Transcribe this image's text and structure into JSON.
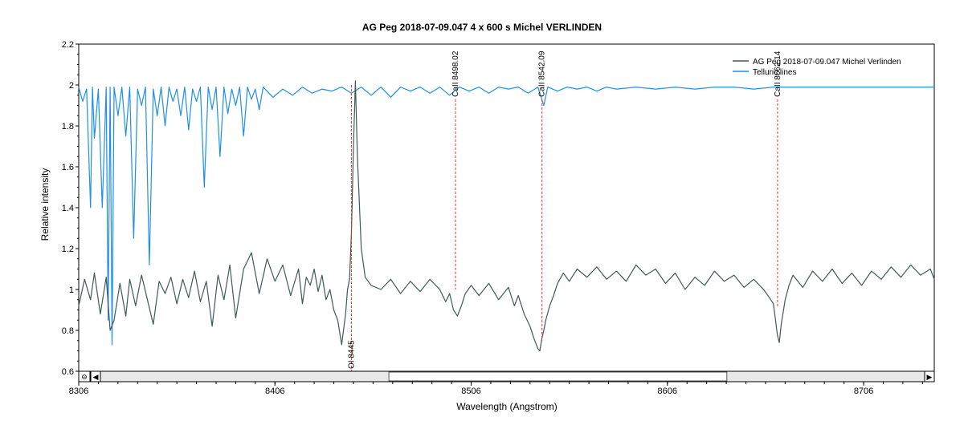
{
  "chart_data": {
    "type": "line",
    "title": "AG Peg  2018-07-09.047   4 x 600 s  Michel VERLINDEN",
    "xlabel": "Wavelength (Angstrom)",
    "ylabel": "Relative intensity",
    "xlim": [
      8306,
      8742
    ],
    "ylim": [
      0.6,
      2.2
    ],
    "x_ticks": [
      8306,
      8406,
      8506,
      8606,
      8706
    ],
    "y_ticks": [
      "0.6",
      "0.8",
      "1",
      "1.2",
      "1.4",
      "1.6",
      "1.8",
      "2",
      "2.2"
    ],
    "legend_position": "top-right",
    "colors": {
      "spectrum": "#3f5a57",
      "telluric": "#1f8fe8",
      "annotation": "#e8332a"
    },
    "series": [
      {
        "name": "AG Peg  2018-07-09.047  Michel Verlinden",
        "x": [
          8306,
          8309,
          8312,
          8314,
          8317,
          8320,
          8322,
          8324,
          8327,
          8330,
          8332,
          8335,
          8338,
          8341,
          8344,
          8347,
          8350,
          8353,
          8356,
          8359,
          8362,
          8365,
          8368,
          8371,
          8374,
          8377,
          8380,
          8383,
          8386,
          8390,
          8394,
          8398,
          8402,
          8406,
          8410,
          8414,
          8418,
          8420,
          8422,
          8424,
          8426,
          8428,
          8430,
          8432,
          8434,
          8436,
          8438,
          8440,
          8442,
          8443,
          8444,
          8445,
          8446,
          8447,
          8448,
          8450,
          8452,
          8455,
          8460,
          8465,
          8470,
          8475,
          8480,
          8485,
          8490,
          8493,
          8495,
          8497,
          8499,
          8501,
          8503,
          8506,
          8510,
          8515,
          8520,
          8525,
          8528,
          8530,
          8533,
          8536,
          8538,
          8540,
          8541,
          8542,
          8543,
          8544,
          8546,
          8548,
          8550,
          8553,
          8556,
          8560,
          8565,
          8570,
          8575,
          8580,
          8585,
          8590,
          8595,
          8600,
          8605,
          8610,
          8615,
          8620,
          8625,
          8630,
          8635,
          8640,
          8645,
          8650,
          8655,
          8658,
          8660,
          8661,
          8662,
          8663,
          8664,
          8666,
          8668,
          8670,
          8675,
          8680,
          8685,
          8690,
          8695,
          8700,
          8705,
          8710,
          8715,
          8720,
          8725,
          8730,
          8735,
          8740,
          8742
        ],
        "values": [
          0.92,
          1.05,
          0.95,
          1.08,
          0.88,
          1.06,
          0.8,
          0.85,
          1.03,
          0.87,
          1.05,
          0.92,
          1.07,
          0.95,
          0.83,
          1.04,
          0.98,
          1.06,
          0.93,
          1.05,
          0.96,
          1.09,
          0.94,
          1.04,
          0.82,
          1.07,
          0.95,
          1.12,
          0.86,
          1.1,
          1.18,
          0.98,
          1.15,
          1.04,
          1.12,
          0.97,
          1.1,
          0.93,
          1.06,
          1.02,
          1.1,
          0.99,
          1.07,
          0.95,
          1.0,
          0.9,
          0.85,
          0.73,
          0.88,
          1.0,
          1.05,
          1.28,
          1.7,
          2.02,
          1.65,
          1.2,
          1.06,
          1.02,
          1.0,
          1.05,
          0.98,
          1.04,
          0.99,
          1.05,
          1.0,
          0.94,
          0.98,
          0.9,
          0.87,
          0.92,
          0.98,
          1.02,
          0.97,
          1.03,
          0.95,
          1.01,
          0.92,
          0.97,
          0.88,
          0.82,
          0.76,
          0.71,
          0.7,
          0.76,
          0.8,
          0.85,
          0.92,
          0.97,
          1.03,
          1.08,
          1.04,
          1.1,
          1.06,
          1.11,
          1.05,
          1.09,
          1.04,
          1.12,
          1.07,
          1.1,
          1.03,
          1.08,
          1.0,
          1.06,
          1.02,
          1.09,
          1.04,
          1.07,
          1.01,
          1.05,
          1.0,
          0.96,
          0.93,
          0.86,
          0.78,
          0.74,
          0.83,
          0.95,
          1.02,
          1.07,
          1.01,
          1.09,
          1.04,
          1.1,
          1.03,
          1.08,
          1.02,
          1.09,
          1.05,
          1.11,
          1.06,
          1.12,
          1.07,
          1.1,
          1.05
        ]
      },
      {
        "name": "Telluric lines",
        "x": [
          8306,
          8308,
          8310,
          8312,
          8313,
          8314,
          8316,
          8318,
          8320,
          8321,
          8322,
          8323,
          8324,
          8326,
          8328,
          8330,
          8332,
          8334,
          8336,
          8338,
          8340,
          8342,
          8344,
          8346,
          8348,
          8350,
          8352,
          8354,
          8356,
          8358,
          8360,
          8362,
          8364,
          8366,
          8368,
          8370,
          8372,
          8374,
          8376,
          8378,
          8380,
          8382,
          8384,
          8386,
          8388,
          8390,
          8392,
          8394,
          8396,
          8398,
          8400,
          8405,
          8410,
          8415,
          8420,
          8425,
          8430,
          8435,
          8440,
          8445,
          8450,
          8455,
          8460,
          8465,
          8470,
          8475,
          8480,
          8485,
          8490,
          8495,
          8500,
          8505,
          8510,
          8515,
          8520,
          8525,
          8530,
          8535,
          8540,
          8543,
          8545,
          8550,
          8555,
          8560,
          8565,
          8570,
          8575,
          8580,
          8590,
          8600,
          8610,
          8620,
          8630,
          8640,
          8650,
          8660,
          8670,
          8680,
          8690,
          8700,
          8710,
          8720,
          8730,
          8740,
          8742
        ],
        "values": [
          1.99,
          1.92,
          1.98,
          1.4,
          1.99,
          1.74,
          1.98,
          1.4,
          1.99,
          0.85,
          1.99,
          0.73,
          1.99,
          1.85,
          1.99,
          1.75,
          1.99,
          1.25,
          1.98,
          1.9,
          1.99,
          1.12,
          1.98,
          1.85,
          1.99,
          1.8,
          1.99,
          1.92,
          1.98,
          1.85,
          1.99,
          1.78,
          1.98,
          1.92,
          1.99,
          1.5,
          1.99,
          1.88,
          1.99,
          1.65,
          1.99,
          1.86,
          1.98,
          1.9,
          1.99,
          1.75,
          1.99,
          1.93,
          1.98,
          1.88,
          1.99,
          1.94,
          1.98,
          1.95,
          1.99,
          1.96,
          1.98,
          1.97,
          1.99,
          1.96,
          1.99,
          1.95,
          1.99,
          1.94,
          1.99,
          1.97,
          1.99,
          1.96,
          1.99,
          1.95,
          1.99,
          1.97,
          1.99,
          1.96,
          1.99,
          1.98,
          1.99,
          1.96,
          1.99,
          1.9,
          1.99,
          1.97,
          1.99,
          1.98,
          1.99,
          1.97,
          1.99,
          1.98,
          1.99,
          1.98,
          1.99,
          1.98,
          1.99,
          1.99,
          1.98,
          1.99,
          1.99,
          1.99,
          1.99,
          1.99,
          1.99,
          1.99,
          1.99,
          1.99,
          1.99
        ]
      }
    ],
    "annotations": [
      {
        "label": "OI 8445",
        "x": 8445,
        "y_top": 2.0,
        "y_bottom": 0.6,
        "label_pos": "bottom"
      },
      {
        "label": "CaII 8498.02",
        "x": 8498.02,
        "y_top": 1.93,
        "y_bottom": 1.0,
        "label_pos": "top"
      },
      {
        "label": "CaII 8542.09",
        "x": 8542.09,
        "y_top": 1.93,
        "y_bottom": 0.75,
        "label_pos": "top"
      },
      {
        "label": "CaII 8662.14",
        "x": 8662.14,
        "y_top": 1.93,
        "y_bottom": 0.91,
        "label_pos": "top"
      }
    ]
  },
  "scrollbar": {
    "zoom_glyph": "⊖",
    "left_arrow": "◀",
    "right_arrow": "▶",
    "thumb_start_fraction": 0.35,
    "thumb_end_fraction": 0.76
  }
}
